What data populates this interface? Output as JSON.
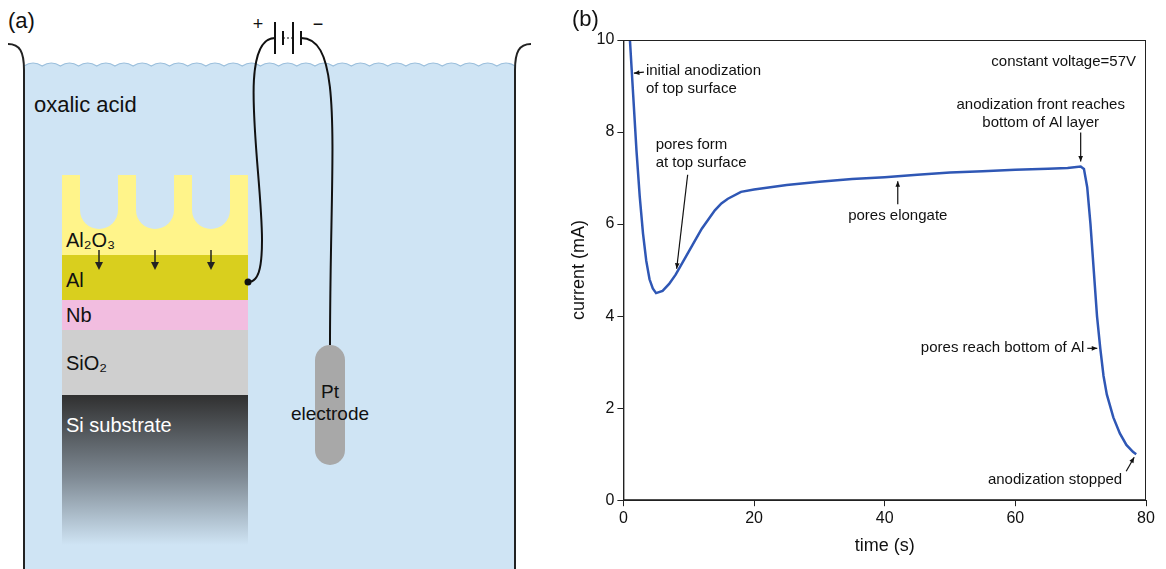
{
  "diagram": {
    "panel_label": "(a)",
    "liquid": "oxalic acid",
    "layers": [
      "Al₂O₃",
      "Al",
      "Nb",
      "SiO₂",
      "Si substrate"
    ],
    "electrode": "Pt electrode",
    "battery": [
      "+",
      "−"
    ]
  },
  "chart_data": {
    "panel_label": "(b)",
    "type": "line",
    "x_label": "time (s)",
    "y_label": "current (mA)",
    "x": [
      1,
      1.5,
      2,
      2.5,
      3,
      3.5,
      4,
      4.5,
      5,
      6,
      7,
      8,
      9,
      10,
      11,
      12,
      13,
      14,
      15,
      16,
      18,
      20,
      25,
      30,
      35,
      40,
      45,
      50,
      55,
      60,
      65,
      68,
      70,
      70.5,
      71,
      71.5,
      72,
      72.5,
      73,
      73.5,
      74,
      75,
      76,
      77,
      78,
      78.5
    ],
    "values": [
      10,
      8.8,
      7.6,
      6.6,
      5.8,
      5.2,
      4.8,
      4.6,
      4.5,
      4.55,
      4.7,
      4.9,
      5.15,
      5.4,
      5.65,
      5.9,
      6.1,
      6.3,
      6.45,
      6.55,
      6.7,
      6.75,
      6.85,
      6.92,
      6.98,
      7.02,
      7.07,
      7.12,
      7.15,
      7.18,
      7.2,
      7.22,
      7.25,
      7.2,
      6.8,
      6.0,
      5.0,
      4.0,
      3.3,
      2.7,
      2.3,
      1.8,
      1.45,
      1.2,
      1.05,
      1.0
    ],
    "color": "#2f57b5",
    "xlim": [
      0,
      80
    ],
    "xticks": [
      0,
      20,
      40,
      60,
      80
    ],
    "ylim": [
      0,
      10
    ],
    "yticks": [
      0,
      2,
      4,
      6,
      8,
      10
    ],
    "grid": false,
    "annotations": [
      {
        "text": "initial anodization of top surface",
        "x": 1.3,
        "y": 9.28
      },
      {
        "text": "pores form at top surface",
        "x": 8,
        "y": 4.9
      },
      {
        "text": "pores elongate",
        "x": 42,
        "y": 7.04
      },
      {
        "text": "anodization front reaches bottom of Al layer",
        "x": 70,
        "y": 7.25
      },
      {
        "text": "pores reach bottom of Al",
        "x": 73,
        "y": 3.3
      },
      {
        "text": "anodization stopped",
        "x": 78.5,
        "y": 1.0
      },
      {
        "text": "constant voltage=57V"
      }
    ]
  }
}
